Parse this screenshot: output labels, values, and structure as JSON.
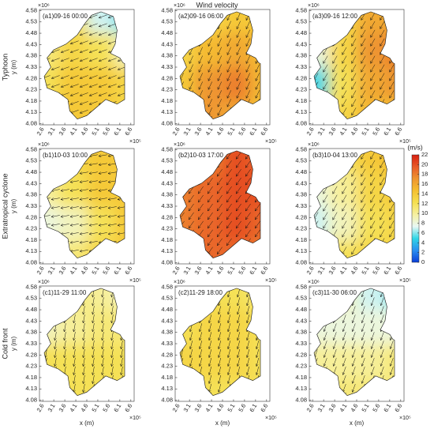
{
  "chart_data": {
    "type": "vector_field_map",
    "title": "Wind velocity",
    "row_labels": [
      "Typhoon",
      "Extratropical cyclone",
      "Cold front"
    ],
    "xlabel": "x (m)",
    "ylabel": "y (m)",
    "x_multiplier": "×10⁵",
    "y_multiplier": "×10⁶",
    "xlim": [
      2.45,
      6.75
    ],
    "ylim": [
      4.075,
      4.585
    ],
    "xticks": [
      2.6,
      3.1,
      3.6,
      4.1,
      4.6,
      5.1,
      5.6,
      6.1,
      6.6
    ],
    "yticks": [
      4.08,
      4.13,
      4.18,
      4.23,
      4.28,
      4.33,
      4.38,
      4.43,
      4.48,
      4.53,
      4.58
    ],
    "colorbar": {
      "label": "(m/s)",
      "lim": [
        0,
        22
      ],
      "ticks": [
        0,
        2,
        4,
        6,
        8,
        10,
        12,
        14,
        16,
        18,
        20,
        22
      ],
      "colormap": [
        "#0a3ed8",
        "#2a8ff0",
        "#30d6e6",
        "#e8f8f4",
        "#f6f0a0",
        "#f5e050",
        "#f5c030",
        "#ee9530",
        "#e85a28",
        "#d82010"
      ]
    },
    "panels": [
      {
        "label": "(a1)09-16 00:00",
        "direction_deg": 200,
        "speed": [
          [
            12,
            12,
            7,
            5
          ],
          [
            11,
            13,
            12,
            9
          ],
          [
            12,
            14,
            14,
            13
          ],
          [
            13,
            14,
            14,
            13
          ]
        ]
      },
      {
        "label": "(a2)09-16 06:00",
        "direction_deg": 245,
        "speed": [
          [
            12,
            13,
            14,
            14
          ],
          [
            13,
            15,
            16,
            15
          ],
          [
            14,
            17,
            18,
            15
          ],
          [
            14,
            17,
            16,
            14
          ]
        ]
      },
      {
        "label": "(a3)09-16 12:00",
        "direction_deg": 240,
        "speed": [
          [
            11,
            13,
            16,
            16
          ],
          [
            8,
            13,
            17,
            18
          ],
          [
            5,
            12,
            16,
            17
          ],
          [
            9,
            13,
            15,
            14
          ]
        ]
      },
      {
        "label": "(b1)10-03 10:00",
        "direction_deg": 190,
        "speed": [
          [
            12,
            13,
            14,
            14
          ],
          [
            10,
            12,
            14,
            14
          ],
          [
            8,
            9,
            12,
            14
          ],
          [
            10,
            11,
            13,
            14
          ]
        ]
      },
      {
        "label": "(b2)10-03 17:00",
        "direction_deg": 235,
        "speed": [
          [
            17,
            18,
            20,
            19
          ],
          [
            18,
            19,
            20,
            20
          ],
          [
            18,
            19,
            20,
            19
          ],
          [
            18,
            19,
            19,
            18
          ]
        ]
      },
      {
        "label": "(b3)10-04 13:00",
        "direction_deg": 240,
        "speed": [
          [
            11,
            12,
            14,
            15
          ],
          [
            8,
            10,
            13,
            14
          ],
          [
            7,
            9,
            12,
            13
          ],
          [
            11,
            12,
            13,
            13
          ]
        ]
      },
      {
        "label": "(c1)11-29 11:00",
        "direction_deg": 260,
        "speed": [
          [
            11,
            11,
            10,
            9
          ],
          [
            9,
            10,
            11,
            11
          ],
          [
            12,
            12,
            12,
            12
          ],
          [
            12,
            12,
            12,
            12
          ]
        ]
      },
      {
        "label": "(c2)11-29 18:00",
        "direction_deg": 255,
        "speed": [
          [
            12,
            12,
            12,
            11
          ],
          [
            12,
            13,
            13,
            12
          ],
          [
            13,
            13,
            13,
            12
          ],
          [
            12,
            12,
            12,
            12
          ]
        ]
      },
      {
        "label": "(c3)11-30 06:00",
        "direction_deg": 250,
        "speed": [
          [
            10,
            9,
            7,
            6
          ],
          [
            8,
            8,
            8,
            8
          ],
          [
            10,
            10,
            10,
            11
          ],
          [
            11,
            11,
            11,
            11
          ]
        ]
      }
    ]
  }
}
